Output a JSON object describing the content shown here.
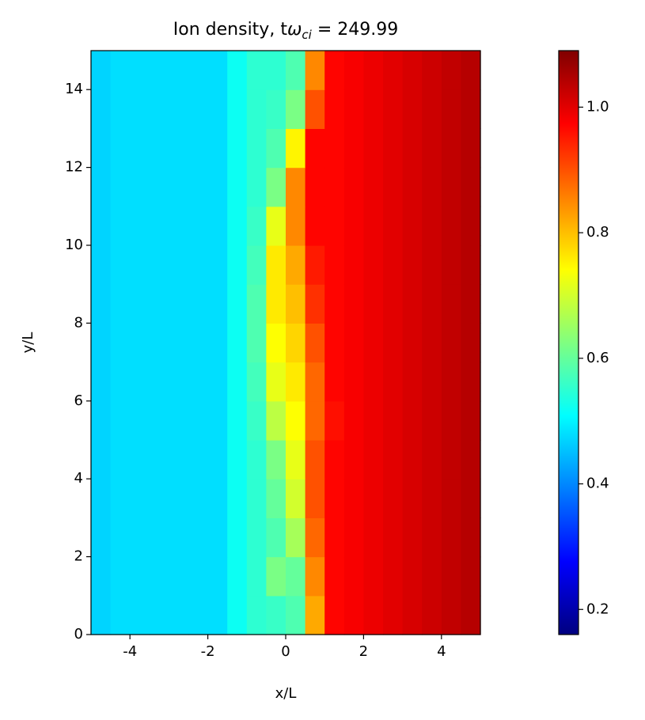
{
  "chart_data": {
    "type": "heatmap",
    "title": {
      "main": "Ion density, t",
      "symbol": "ω",
      "subscript": "ci",
      "suffix": "= 249.99"
    },
    "x_label": "x/L",
    "y_label": "y/L",
    "xlim": [
      -5,
      5
    ],
    "ylim": [
      0,
      15
    ],
    "xticks": [
      -4,
      -2,
      0,
      2,
      4
    ],
    "yticks": [
      0,
      2,
      4,
      6,
      8,
      10,
      12,
      14
    ],
    "colormap": "jet",
    "zlim": [
      0.16,
      1.09
    ],
    "colorbar_ticks": [
      0.2,
      0.4,
      0.6,
      0.8,
      {
        "value": 1,
        "label": "1.0"
      }
    ],
    "x": [
      -4.75,
      -4.25,
      -3.75,
      -3.25,
      -2.75,
      -2.25,
      -1.75,
      -1.25,
      -0.75,
      -0.25,
      0.25,
      0.75,
      1.25,
      1.75,
      2.25,
      2.75,
      3.25,
      3.75,
      4.25,
      4.75
    ],
    "y": [
      0.5,
      1.5,
      2.5,
      3.5,
      4.5,
      5.5,
      6.5,
      7.5,
      8.5,
      9.5,
      10.5,
      11.5,
      12.5,
      13.5,
      14.5
    ],
    "z": [
      [
        0.47,
        0.48,
        0.48,
        0.48,
        0.48,
        0.48,
        0.48,
        0.52,
        0.55,
        0.56,
        0.58,
        0.82,
        0.97,
        0.98,
        0.99,
        1.0,
        1.01,
        1.02,
        1.03,
        1.04
      ],
      [
        0.47,
        0.48,
        0.48,
        0.48,
        0.48,
        0.48,
        0.48,
        0.52,
        0.55,
        0.62,
        0.6,
        0.85,
        0.97,
        0.98,
        0.99,
        1.0,
        1.01,
        1.02,
        1.03,
        1.04
      ],
      [
        0.47,
        0.48,
        0.48,
        0.48,
        0.48,
        0.48,
        0.48,
        0.52,
        0.55,
        0.58,
        0.66,
        0.88,
        0.97,
        0.98,
        0.99,
        1.0,
        1.01,
        1.02,
        1.03,
        1.04
      ],
      [
        0.47,
        0.48,
        0.48,
        0.48,
        0.48,
        0.48,
        0.48,
        0.52,
        0.55,
        0.6,
        0.7,
        0.9,
        0.97,
        0.98,
        0.99,
        1.0,
        1.01,
        1.02,
        1.03,
        1.04
      ],
      [
        0.47,
        0.48,
        0.48,
        0.48,
        0.48,
        0.48,
        0.48,
        0.52,
        0.55,
        0.62,
        0.72,
        0.9,
        0.97,
        0.98,
        0.99,
        1.0,
        1.01,
        1.02,
        1.03,
        1.04
      ],
      [
        0.47,
        0.48,
        0.48,
        0.48,
        0.48,
        0.48,
        0.48,
        0.52,
        0.56,
        0.68,
        0.74,
        0.88,
        0.96,
        0.98,
        0.99,
        1.0,
        1.01,
        1.02,
        1.03,
        1.04
      ],
      [
        0.47,
        0.48,
        0.48,
        0.48,
        0.48,
        0.48,
        0.48,
        0.52,
        0.57,
        0.72,
        0.76,
        0.88,
        0.97,
        0.98,
        0.99,
        1.0,
        1.01,
        1.02,
        1.03,
        1.04
      ],
      [
        0.47,
        0.48,
        0.48,
        0.48,
        0.48,
        0.48,
        0.48,
        0.52,
        0.58,
        0.74,
        0.78,
        0.9,
        0.97,
        0.98,
        0.99,
        1.0,
        1.01,
        1.02,
        1.03,
        1.04
      ],
      [
        0.47,
        0.48,
        0.48,
        0.48,
        0.48,
        0.48,
        0.48,
        0.52,
        0.58,
        0.76,
        0.8,
        0.93,
        0.97,
        0.98,
        0.99,
        1.0,
        1.01,
        1.02,
        1.03,
        1.04
      ],
      [
        0.47,
        0.48,
        0.48,
        0.48,
        0.48,
        0.48,
        0.48,
        0.52,
        0.57,
        0.76,
        0.82,
        0.95,
        0.97,
        0.98,
        0.99,
        1.0,
        1.01,
        1.02,
        1.03,
        1.04
      ],
      [
        0.47,
        0.48,
        0.48,
        0.48,
        0.48,
        0.48,
        0.48,
        0.52,
        0.56,
        0.72,
        0.85,
        0.97,
        0.97,
        0.98,
        0.99,
        1.0,
        1.01,
        1.02,
        1.03,
        1.04
      ],
      [
        0.47,
        0.48,
        0.48,
        0.48,
        0.48,
        0.48,
        0.48,
        0.52,
        0.55,
        0.62,
        0.85,
        0.97,
        0.97,
        0.98,
        0.99,
        1.0,
        1.01,
        1.02,
        1.03,
        1.04
      ],
      [
        0.47,
        0.48,
        0.48,
        0.48,
        0.48,
        0.48,
        0.48,
        0.52,
        0.55,
        0.58,
        0.75,
        0.97,
        0.97,
        0.98,
        0.99,
        1.0,
        1.01,
        1.02,
        1.03,
        1.04
      ],
      [
        0.47,
        0.48,
        0.48,
        0.48,
        0.48,
        0.48,
        0.48,
        0.52,
        0.55,
        0.56,
        0.62,
        0.9,
        0.97,
        0.98,
        0.99,
        1.0,
        1.01,
        1.02,
        1.03,
        1.04
      ],
      [
        0.47,
        0.48,
        0.48,
        0.48,
        0.48,
        0.48,
        0.48,
        0.52,
        0.55,
        0.55,
        0.58,
        0.85,
        0.97,
        0.98,
        0.99,
        1.0,
        1.01,
        1.02,
        1.03,
        1.04
      ]
    ]
  }
}
